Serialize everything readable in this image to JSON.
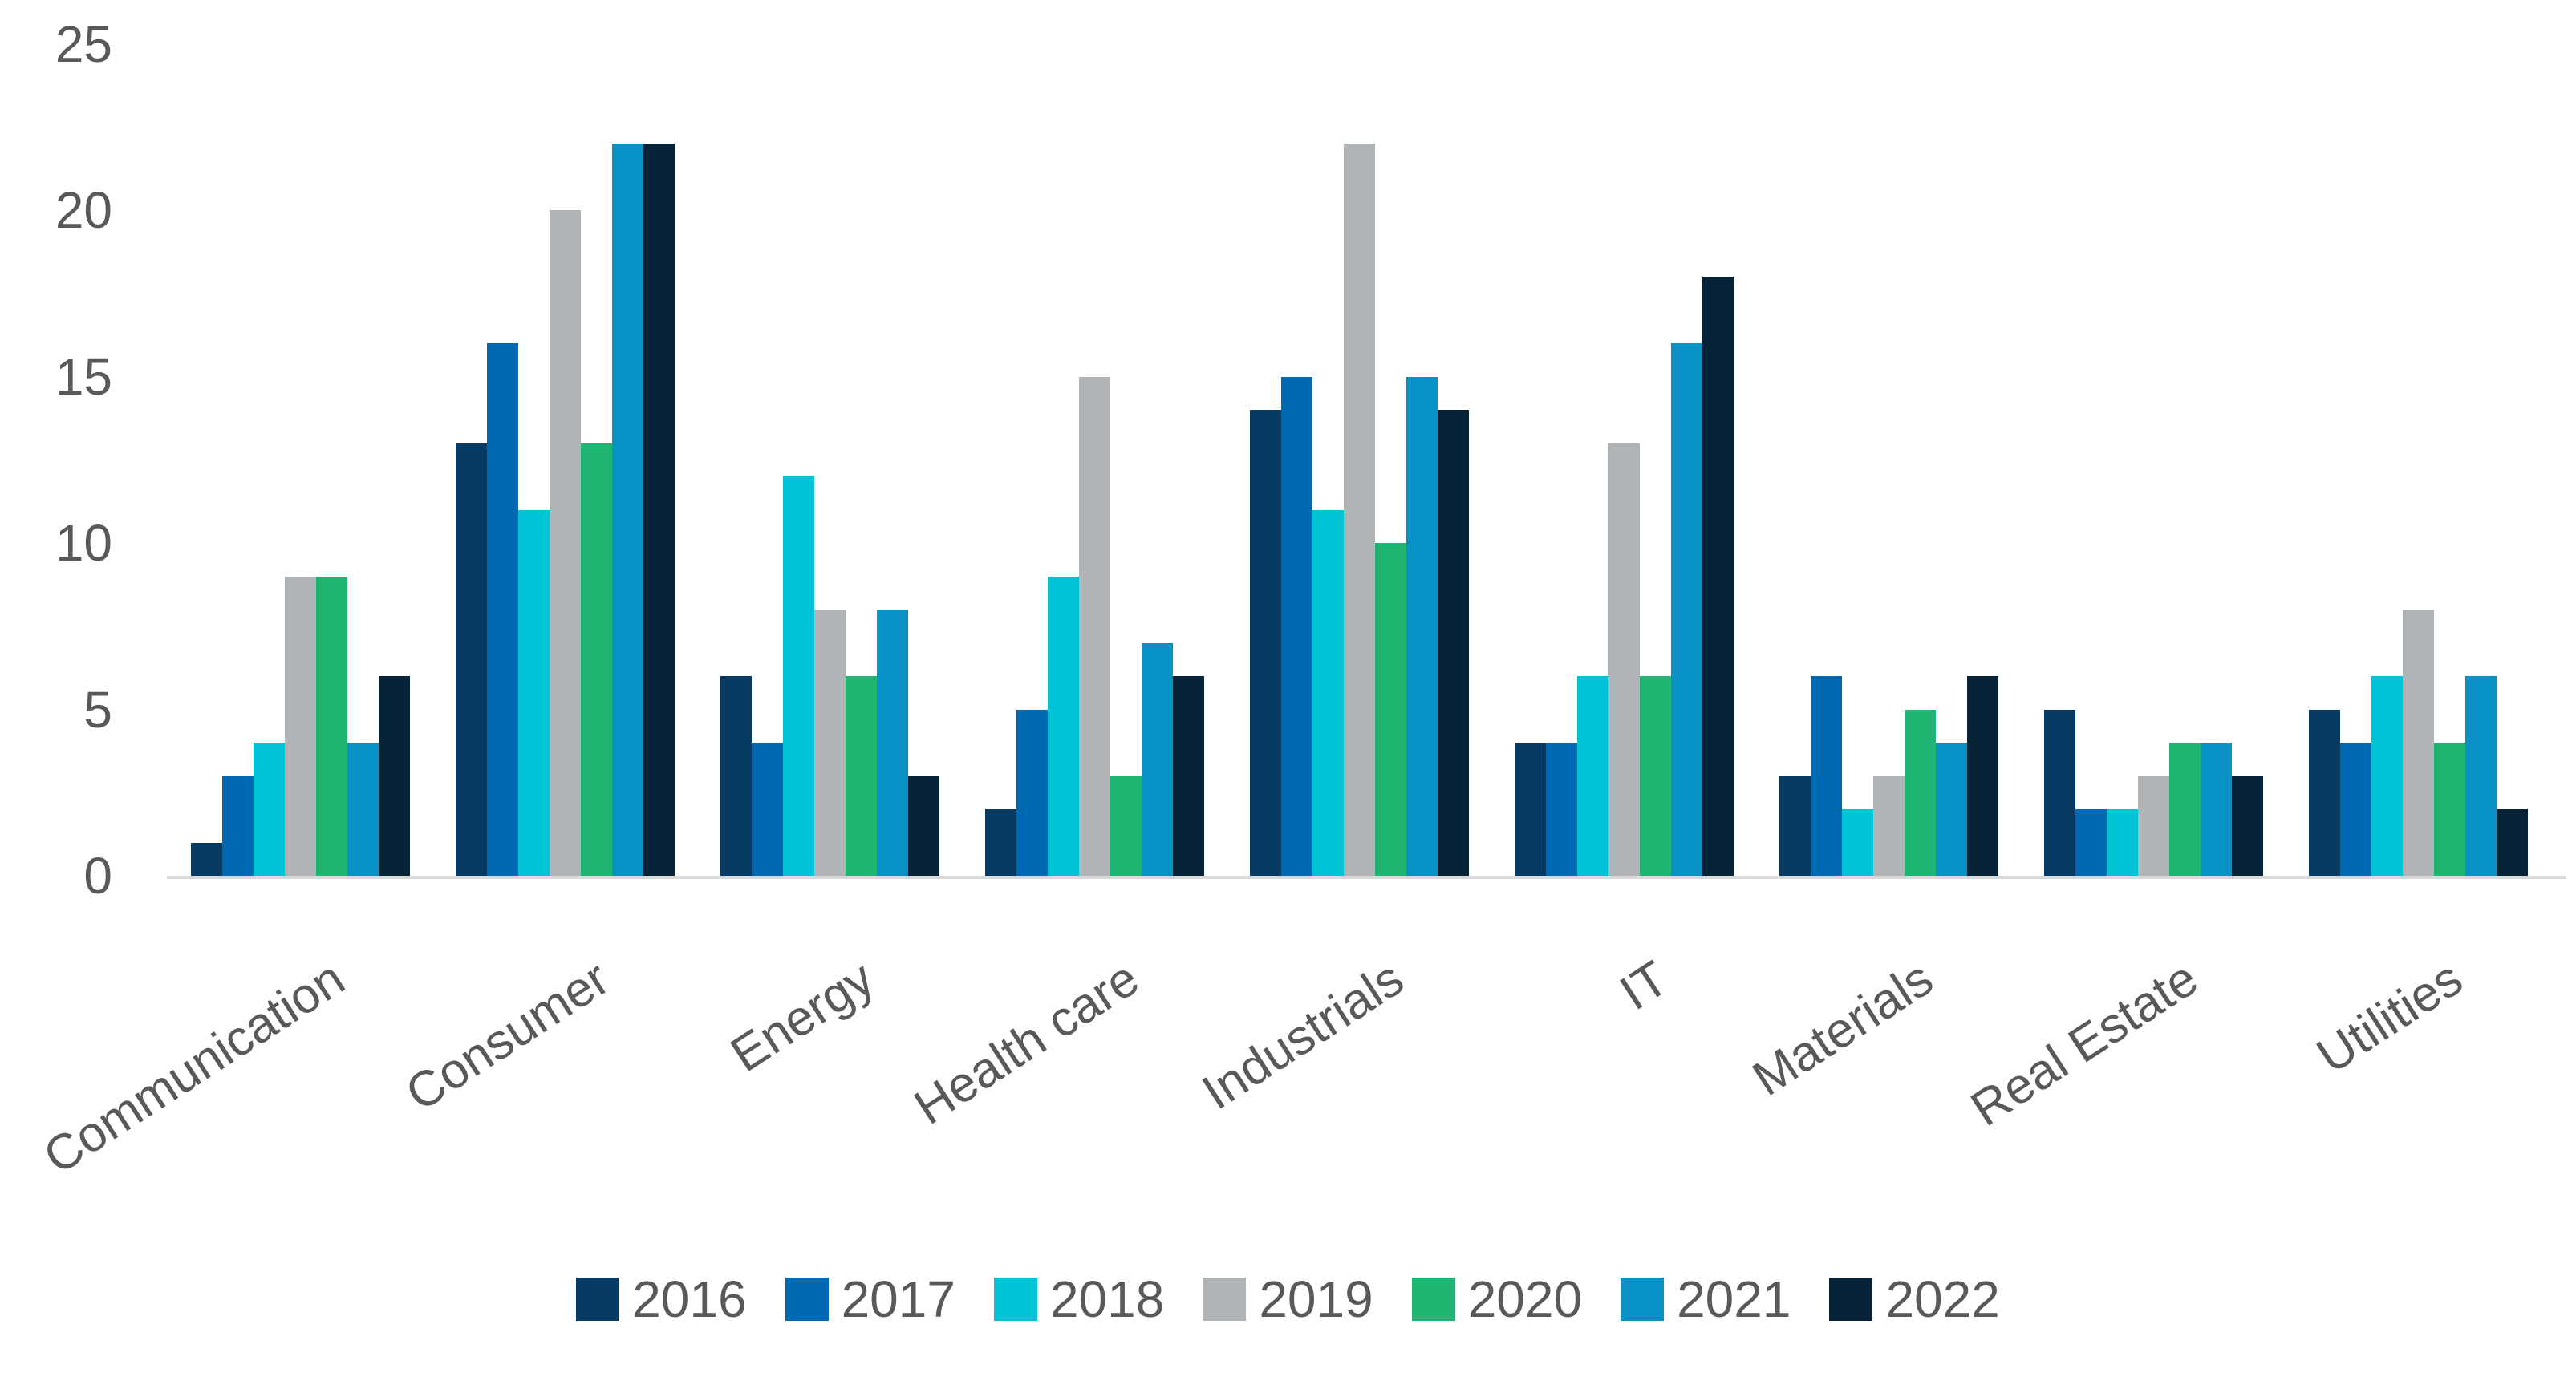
{
  "chart_data": {
    "type": "bar",
    "title": "",
    "xlabel": "",
    "ylabel": "",
    "categories": [
      "Communication",
      "Consumer",
      "Energy",
      "Health care",
      "Industrials",
      "IT",
      "Materials",
      "Real Estate",
      "Utilities"
    ],
    "series": [
      {
        "name": "2016",
        "color": "#073b63",
        "values": [
          1,
          13,
          6,
          2,
          14,
          4,
          3,
          5,
          5
        ]
      },
      {
        "name": "2017",
        "color": "#0069b4",
        "values": [
          3,
          16,
          4,
          5,
          15,
          4,
          6,
          2,
          4
        ]
      },
      {
        "name": "2018",
        "color": "#00c4d5",
        "values": [
          4,
          11,
          12,
          9,
          11,
          6,
          2,
          2,
          6
        ]
      },
      {
        "name": "2019",
        "color": "#b1b4b7",
        "values": [
          9,
          20,
          8,
          15,
          22,
          13,
          3,
          3,
          8
        ]
      },
      {
        "name": "2020",
        "color": "#21b573",
        "values": [
          9,
          13,
          6,
          3,
          10,
          6,
          5,
          4,
          4
        ]
      },
      {
        "name": "2021",
        "color": "#0791c5",
        "values": [
          4,
          22,
          8,
          7,
          15,
          16,
          4,
          4,
          6
        ]
      },
      {
        "name": "2022",
        "color": "#062338",
        "values": [
          6,
          22,
          3,
          6,
          14,
          18,
          6,
          3,
          2
        ]
      }
    ],
    "ylim": [
      0,
      25
    ],
    "yticks": [
      0,
      5,
      10,
      15,
      20,
      25
    ],
    "grid": false,
    "legend_position": "bottom",
    "axis_line_color": "#d9d9d9",
    "tick_label_color": "#595959"
  }
}
